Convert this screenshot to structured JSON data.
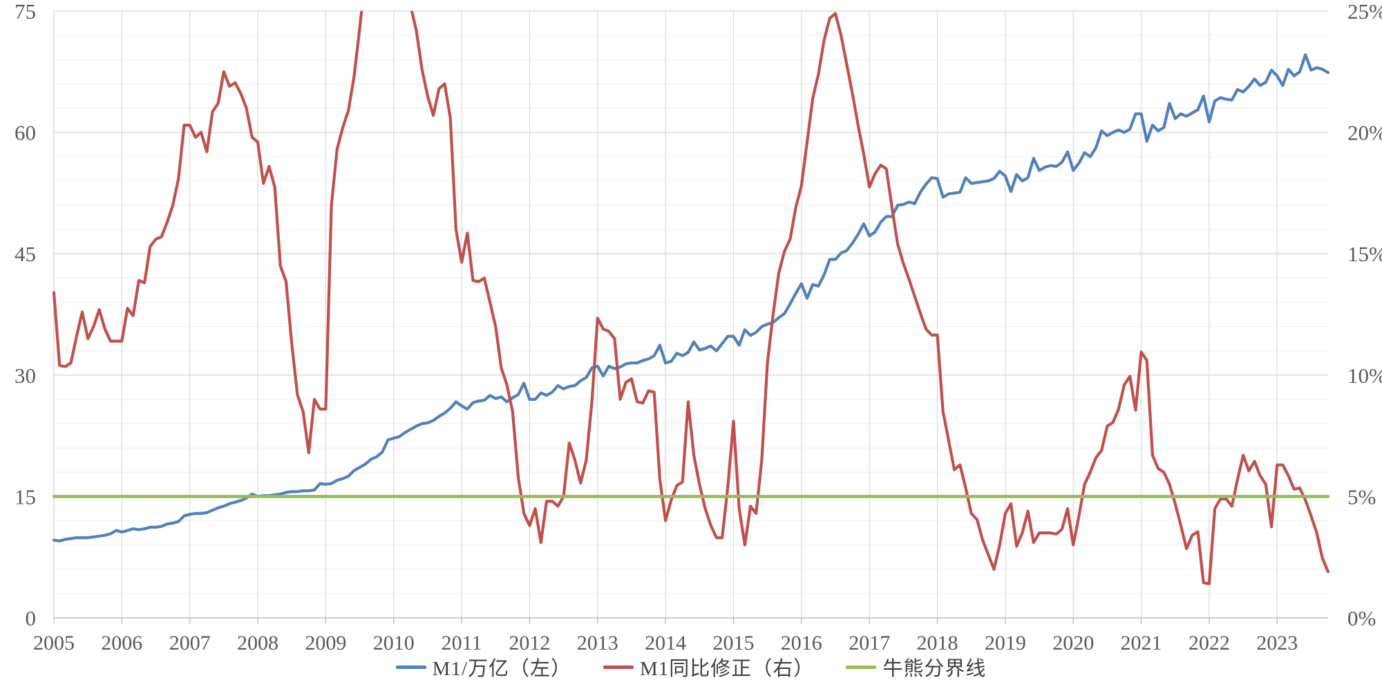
{
  "colors": {
    "background": "#ffffff",
    "grid_minor": "#efefef",
    "grid_major": "#d9d9d9",
    "axis_line": "#bfbfbf",
    "axis_text": "#595959",
    "legend_text": "#3f3f3f",
    "series_m1": "#4f81bd",
    "series_yoy": "#c0504d",
    "series_divider": "#9bbb59"
  },
  "chart_data": {
    "type": "line",
    "title": "",
    "x_start": "2005-01",
    "x_end": "2023-10",
    "months_per_point": 1,
    "x_tick_labels": [
      "2005",
      "2006",
      "2007",
      "2008",
      "2009",
      "2010",
      "2011",
      "2012",
      "2013",
      "2014",
      "2015",
      "2016",
      "2017",
      "2018",
      "2019",
      "2020",
      "2021",
      "2022",
      "2023"
    ],
    "left_axis": {
      "range": [
        0,
        75
      ],
      "tick_step": 15,
      "tick_labels": [
        "0",
        "15",
        "30",
        "45",
        "60",
        "75"
      ]
    },
    "right_axis": {
      "range": [
        0,
        25
      ],
      "tick_step": 5,
      "unit": "%",
      "tick_labels": [
        "0%",
        "5%",
        "10%",
        "15%",
        "20%",
        "25%"
      ]
    },
    "grid": {
      "h_minor_step_percent": 1,
      "h_major_step_percent": 5,
      "v_step_years": 1,
      "legend_position": "bottom",
      "note_offscale": "red series exceeds 25% during late 2009 - early 2010 and is clipped at plot top"
    },
    "series": [
      {
        "name": "M1/万亿（左）",
        "axis": "left",
        "color": "#4f81bd",
        "values": [
          9.6,
          9.5,
          9.7,
          9.8,
          9.9,
          9.9,
          9.9,
          10.0,
          10.1,
          10.2,
          10.4,
          10.8,
          10.6,
          10.8,
          11.0,
          10.9,
          11.0,
          11.2,
          11.2,
          11.3,
          11.6,
          11.7,
          11.9,
          12.6,
          12.8,
          12.9,
          12.9,
          13.0,
          13.3,
          13.6,
          13.8,
          14.1,
          14.3,
          14.5,
          14.8,
          15.3,
          15.0,
          15.1,
          15.1,
          15.2,
          15.3,
          15.5,
          15.6,
          15.6,
          15.7,
          15.7,
          15.8,
          16.6,
          16.5,
          16.6,
          17.0,
          17.2,
          17.5,
          18.2,
          18.6,
          19.0,
          19.6,
          19.9,
          20.5,
          22.0,
          22.2,
          22.4,
          22.9,
          23.3,
          23.7,
          24.0,
          24.1,
          24.4,
          24.9,
          25.3,
          25.9,
          26.7,
          26.2,
          25.8,
          26.6,
          26.8,
          26.9,
          27.5,
          27.1,
          27.3,
          26.7,
          27.2,
          27.6,
          29.0,
          27.0,
          27.0,
          27.8,
          27.5,
          27.9,
          28.7,
          28.3,
          28.6,
          28.7,
          29.3,
          29.7,
          30.9,
          31.1,
          29.9,
          31.1,
          30.8,
          31.0,
          31.4,
          31.5,
          31.5,
          31.8,
          32.0,
          32.4,
          33.7,
          31.5,
          31.7,
          32.7,
          32.4,
          32.8,
          34.1,
          33.1,
          33.3,
          33.6,
          33.0,
          33.9,
          34.8,
          34.8,
          33.7,
          35.6,
          34.9,
          35.3,
          36.0,
          36.3,
          36.5,
          37.1,
          37.6,
          38.8,
          40.1,
          41.3,
          39.5,
          41.2,
          41.0,
          42.4,
          44.3,
          44.3,
          45.1,
          45.4,
          46.3,
          47.4,
          48.7,
          47.2,
          47.7,
          48.9,
          49.6,
          49.6,
          51.0,
          51.1,
          51.4,
          51.2,
          52.6,
          53.6,
          54.4,
          54.3,
          52.0,
          52.4,
          52.5,
          52.6,
          54.4,
          53.7,
          53.8,
          53.9,
          54.0,
          54.3,
          55.2,
          54.6,
          52.7,
          54.8,
          54.0,
          54.4,
          56.8,
          55.3,
          55.7,
          55.9,
          55.8,
          56.3,
          57.6,
          55.3,
          56.2,
          57.5,
          57.0,
          58.1,
          60.2,
          59.6,
          60.0,
          60.3,
          60.0,
          60.4,
          62.3,
          62.3,
          58.9,
          60.9,
          60.2,
          60.6,
          63.6,
          61.7,
          62.3,
          62.0,
          62.4,
          62.8,
          64.5,
          61.3,
          63.9,
          64.3,
          64.1,
          64.0,
          65.3,
          65.0,
          65.7,
          66.6,
          65.8,
          66.2,
          67.7,
          67.0,
          65.8,
          67.8,
          67.0,
          67.5,
          69.6,
          67.7,
          68.0,
          67.8,
          67.4
        ]
      },
      {
        "name": "M1同比修正（右）",
        "axis": "right",
        "unit": "%",
        "color": "#c0504d",
        "values": [
          13.4,
          10.4,
          10.35,
          10.5,
          11.6,
          12.6,
          11.5,
          12.0,
          12.7,
          11.9,
          11.4,
          11.4,
          11.4,
          12.75,
          12.45,
          13.9,
          13.8,
          15.3,
          15.6,
          15.7,
          16.3,
          17.0,
          18.1,
          20.3,
          20.3,
          19.8,
          20.0,
          19.2,
          20.85,
          21.2,
          22.5,
          21.9,
          22.05,
          21.6,
          21.0,
          19.8,
          19.6,
          17.9,
          18.6,
          17.75,
          14.5,
          13.85,
          11.3,
          9.2,
          8.5,
          6.8,
          9.0,
          8.6,
          8.6,
          17.0,
          19.3,
          20.2,
          20.9,
          22.3,
          24.3,
          26.5,
          28.5,
          30.0,
          31.0,
          31.0,
          30.0,
          28.5,
          26.5,
          25.2,
          24.2,
          22.6,
          21.5,
          20.7,
          21.8,
          22.0,
          20.6,
          16.0,
          14.65,
          15.85,
          13.9,
          13.85,
          14.0,
          13.0,
          12.0,
          10.3,
          9.6,
          8.5,
          5.8,
          4.3,
          3.8,
          4.5,
          3.1,
          4.8,
          4.8,
          4.6,
          5.0,
          7.2,
          6.5,
          5.55,
          6.5,
          8.9,
          12.35,
          11.9,
          11.8,
          11.5,
          9.0,
          9.7,
          9.85,
          8.9,
          8.85,
          9.35,
          9.3,
          5.7,
          4.0,
          4.85,
          5.45,
          5.6,
          8.9,
          6.7,
          5.5,
          4.5,
          3.8,
          3.3,
          3.3,
          5.4,
          8.1,
          4.5,
          3.0,
          4.6,
          4.3,
          6.5,
          10.5,
          12.5,
          14.2,
          15.1,
          15.6,
          16.9,
          17.8,
          19.6,
          21.4,
          22.4,
          23.8,
          24.7,
          24.9,
          24.0,
          22.8,
          21.6,
          20.3,
          19.1,
          17.75,
          18.3,
          18.65,
          18.5,
          16.9,
          15.4,
          14.6,
          13.95,
          13.25,
          12.55,
          11.9,
          11.65,
          11.65,
          8.5,
          7.3,
          6.1,
          6.3,
          5.35,
          4.3,
          4.05,
          3.2,
          2.6,
          2.0,
          3.0,
          4.3,
          4.7,
          2.95,
          3.5,
          4.4,
          3.1,
          3.5,
          3.5,
          3.5,
          3.45,
          3.65,
          4.5,
          3.0,
          4.2,
          5.5,
          6.0,
          6.6,
          6.9,
          7.9,
          8.05,
          8.6,
          9.6,
          9.95,
          8.55,
          10.95,
          10.6,
          6.7,
          6.15,
          6.0,
          5.5,
          4.7,
          3.8,
          2.85,
          3.4,
          3.55,
          1.45,
          1.4,
          4.5,
          4.9,
          4.9,
          4.6,
          5.7,
          6.7,
          6.05,
          6.45,
          5.85,
          5.5,
          3.75,
          6.3,
          6.3,
          5.85,
          5.3,
          5.35,
          4.85,
          4.2,
          3.5,
          2.45,
          1.9
        ]
      },
      {
        "name": "牛熊分界线",
        "axis": "right",
        "unit": "%",
        "color": "#9bbb59",
        "constant": 5
      }
    ]
  }
}
